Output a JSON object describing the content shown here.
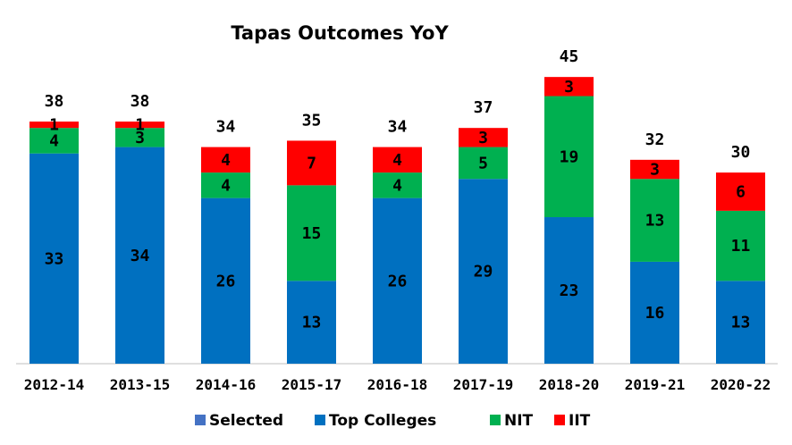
{
  "chart_data": {
    "type": "bar",
    "stacked": true,
    "title": "Tapas Outcomes YoY",
    "categories": [
      "2012-14",
      "2013-15",
      "2014-16",
      "2015-17",
      "2016-18",
      "2017-19",
      "2018-20",
      "2019-21",
      "2020-22"
    ],
    "totals": [
      38,
      38,
      34,
      35,
      34,
      37,
      45,
      32,
      30
    ],
    "series": [
      {
        "name": "Top Colleges",
        "color": "#0070C0",
        "values": [
          33,
          34,
          26,
          13,
          26,
          29,
          23,
          16,
          13
        ]
      },
      {
        "name": "NIT",
        "color": "#00B050",
        "values": [
          4,
          3,
          4,
          15,
          4,
          5,
          19,
          13,
          11
        ]
      },
      {
        "name": "IIT",
        "color": "#FF0000",
        "values": [
          1,
          1,
          4,
          7,
          4,
          3,
          3,
          3,
          6
        ]
      }
    ],
    "legend": [
      {
        "name": "Selected",
        "color": "#4472C4"
      },
      {
        "name": "Top Colleges",
        "color": "#0070C0"
      },
      {
        "name": "NIT",
        "color": "#00B050"
      },
      {
        "name": "IIT",
        "color": "#FF0000"
      }
    ],
    "legend_position": "bottom",
    "ylim": [
      0,
      48
    ],
    "grid": false,
    "xlabel": "",
    "ylabel": ""
  }
}
